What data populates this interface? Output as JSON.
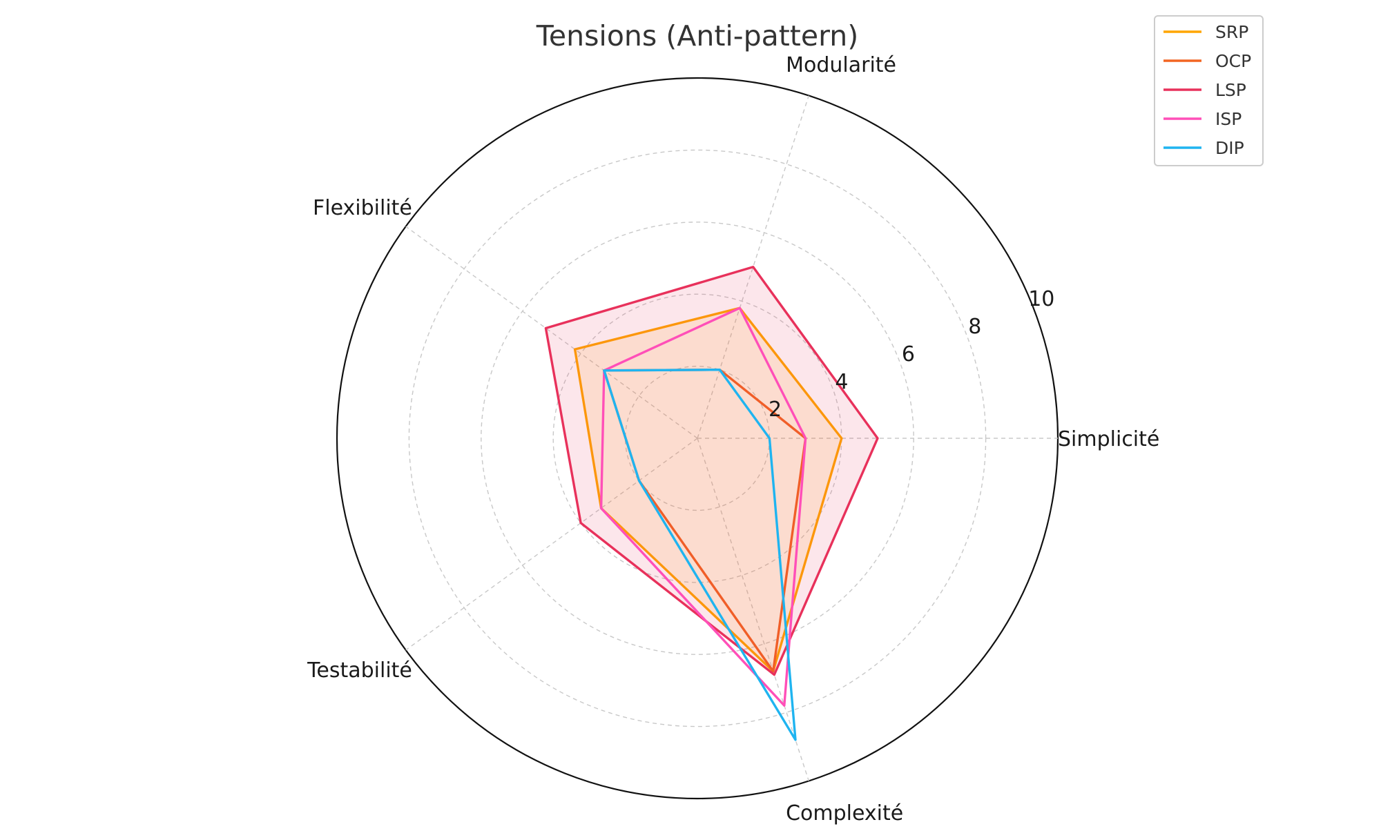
{
  "chart_data": {
    "type": "radar",
    "title": "Tensions (Anti-pattern)",
    "axes": [
      "Simplicité",
      "Modularité",
      "Flexibilité",
      "Testabilité",
      "Complexité"
    ],
    "rlim": [
      0,
      10
    ],
    "r_ticks": [
      2,
      4,
      6,
      8,
      10
    ],
    "grid": true,
    "legend_position": "top-right",
    "series": [
      {
        "name": "SRP",
        "color": "#FFA500",
        "values": [
          4.0,
          3.8,
          4.2,
          3.3,
          6.8
        ],
        "filled": true
      },
      {
        "name": "OCP",
        "color": "#F26522",
        "values": [
          3.0,
          2.0,
          3.2,
          2.0,
          6.8
        ],
        "filled": false
      },
      {
        "name": "LSP",
        "color": "#E8315B",
        "values": [
          5.0,
          5.0,
          5.2,
          4.0,
          6.9
        ],
        "filled": true
      },
      {
        "name": "ISP",
        "color": "#FF4FB8",
        "values": [
          3.0,
          3.8,
          3.2,
          3.3,
          7.8
        ],
        "filled": false
      },
      {
        "name": "DIP",
        "color": "#1FB4F0",
        "values": [
          2.0,
          2.0,
          3.2,
          2.0,
          8.8
        ],
        "filled": false
      }
    ]
  }
}
